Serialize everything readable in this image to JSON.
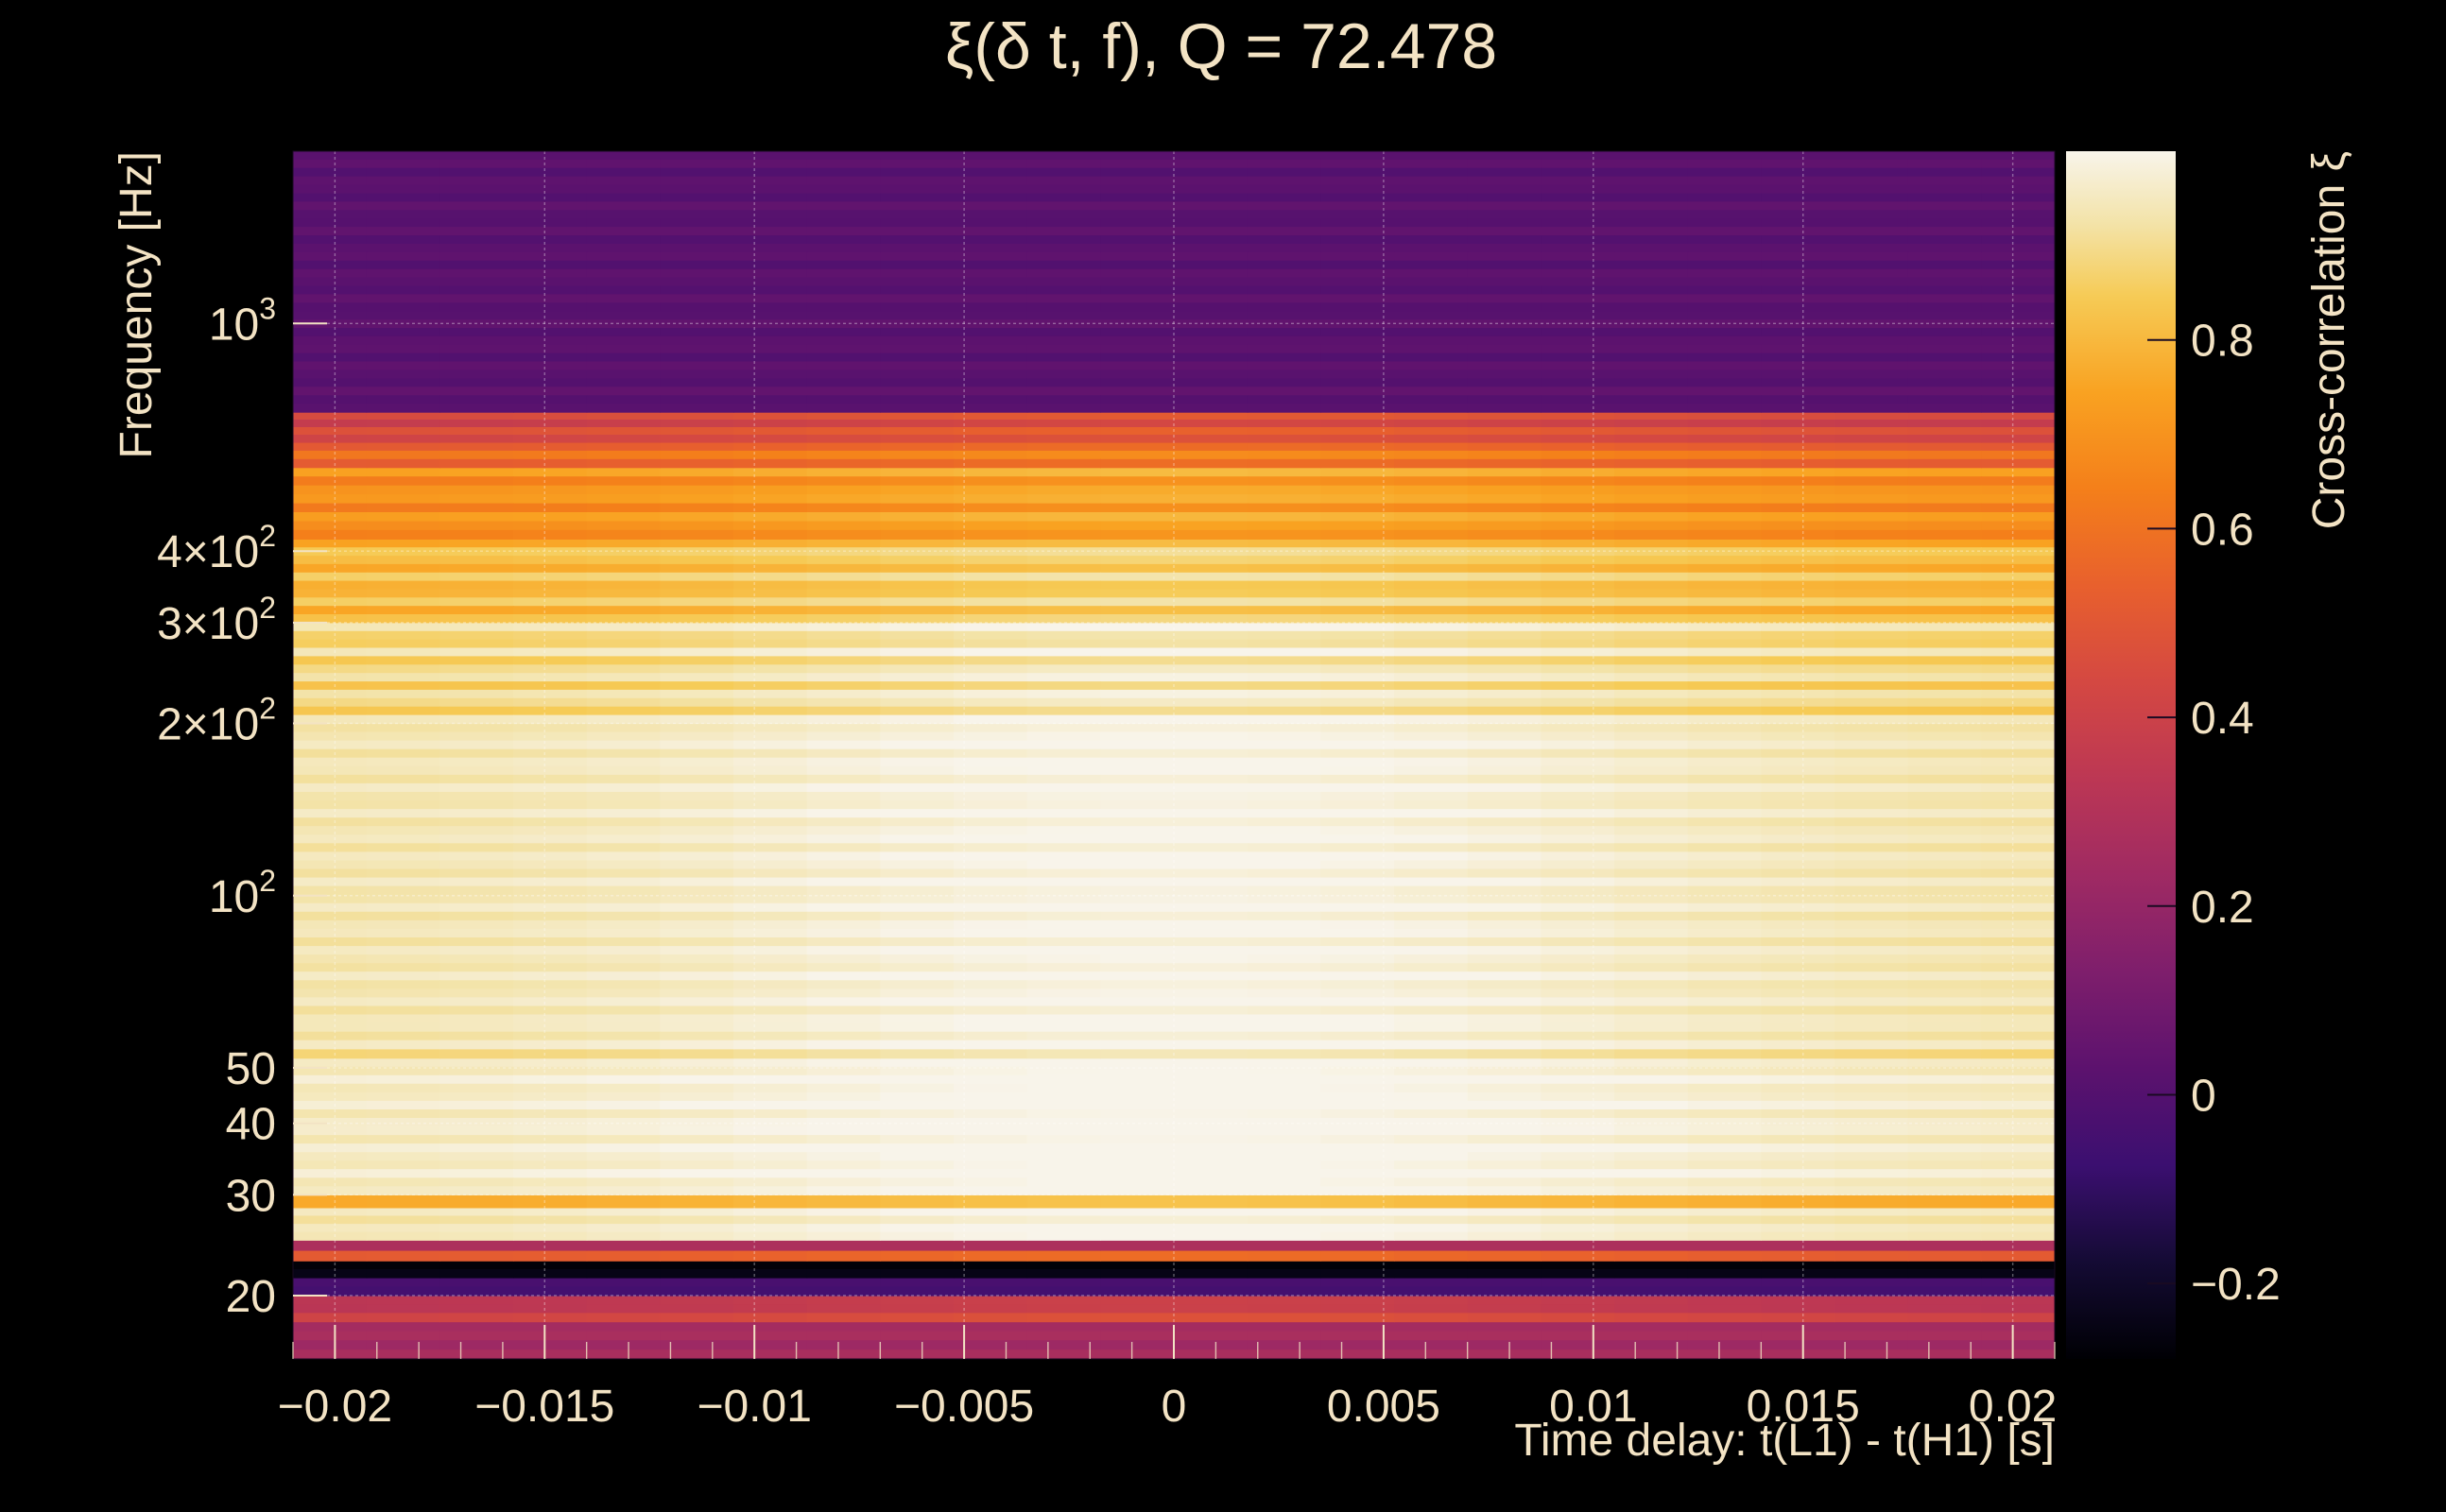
{
  "chart_data": {
    "type": "heatmap",
    "title": "ξ(δ t, f), Q = 72.478",
    "xlabel": "Time delay: t(L1) - t(H1) [s]",
    "ylabel": "Frequency [Hz]",
    "colorbar_label": "Cross-correlation ξ",
    "x_range": [
      -0.021,
      0.021
    ],
    "y_range_hz": [
      15.5,
      2000
    ],
    "y_scale": "log",
    "color_range": [
      -0.28,
      1.0
    ],
    "colormap": "inferno",
    "grid": true,
    "x_ticks": [
      {
        "value": -0.02,
        "label": "−0.02"
      },
      {
        "value": -0.015,
        "label": "−0.015"
      },
      {
        "value": -0.01,
        "label": "−0.01"
      },
      {
        "value": -0.005,
        "label": "−0.005"
      },
      {
        "value": 0,
        "label": "0"
      },
      {
        "value": 0.005,
        "label": "0.005"
      },
      {
        "value": 0.01,
        "label": "0.01"
      },
      {
        "value": 0.015,
        "label": "0.015"
      },
      {
        "value": 0.02,
        "label": "0.02"
      }
    ],
    "y_ticks": [
      {
        "value": 1000,
        "base": "10",
        "sup": "3",
        "label": "10^3"
      },
      {
        "value": 400,
        "base": "4×10",
        "sup": "2",
        "label": "4×10^2"
      },
      {
        "value": 300,
        "base": "3×10",
        "sup": "2",
        "label": "3×10^2"
      },
      {
        "value": 200,
        "base": "2×10",
        "sup": "2",
        "label": "2×10^2"
      },
      {
        "value": 100,
        "base": "10",
        "sup": "2",
        "label": "10^2"
      },
      {
        "value": 50,
        "base": "50",
        "sup": "",
        "label": "50"
      },
      {
        "value": 40,
        "base": "40",
        "sup": "",
        "label": "40"
      },
      {
        "value": 30,
        "base": "30",
        "sup": "",
        "label": "30"
      },
      {
        "value": 20,
        "base": "20",
        "sup": "",
        "label": "20"
      }
    ],
    "colorbar_ticks": [
      {
        "value": 0.8,
        "label": "0.8"
      },
      {
        "value": 0.6,
        "label": "0.6"
      },
      {
        "value": 0.4,
        "label": "0.4"
      },
      {
        "value": 0.2,
        "label": "0.2"
      },
      {
        "value": 0,
        "label": "0"
      },
      {
        "value": -0.2,
        "label": "−0.2"
      }
    ],
    "frequency_bands": [
      {
        "f_min": 15.5,
        "f_max": 18,
        "xi": 0.25
      },
      {
        "f_min": 18,
        "f_max": 20,
        "xi": 0.35
      },
      {
        "f_min": 20,
        "f_max": 21.5,
        "xi": -0.05
      },
      {
        "f_min": 21.5,
        "f_max": 23,
        "xi": -0.25
      },
      {
        "f_min": 23,
        "f_max": 24,
        "xi": 0.45
      },
      {
        "f_min": 24,
        "f_max": 25,
        "xi": 0.3
      },
      {
        "f_min": 25,
        "f_max": 28.5,
        "xi": 0.93
      },
      {
        "f_min": 28.5,
        "f_max": 30,
        "xi": 0.78
      },
      {
        "f_min": 30,
        "f_max": 52,
        "xi": 0.95
      },
      {
        "f_min": 52,
        "f_max": 54,
        "xi": 0.85
      },
      {
        "f_min": 54,
        "f_max": 200,
        "xi": 0.93
      },
      {
        "f_min": 200,
        "f_max": 300,
        "xi": 0.88
      },
      {
        "f_min": 300,
        "f_max": 420,
        "xi": 0.8
      },
      {
        "f_min": 420,
        "f_max": 560,
        "xi": 0.68
      },
      {
        "f_min": 560,
        "f_max": 620,
        "xi": 0.55
      },
      {
        "f_min": 620,
        "f_max": 700,
        "xi": 0.42
      },
      {
        "f_min": 700,
        "f_max": 2000,
        "xi": 0.02
      }
    ],
    "peak": {
      "x": 0.0,
      "f_hz": 160,
      "xi": 1.0
    }
  }
}
